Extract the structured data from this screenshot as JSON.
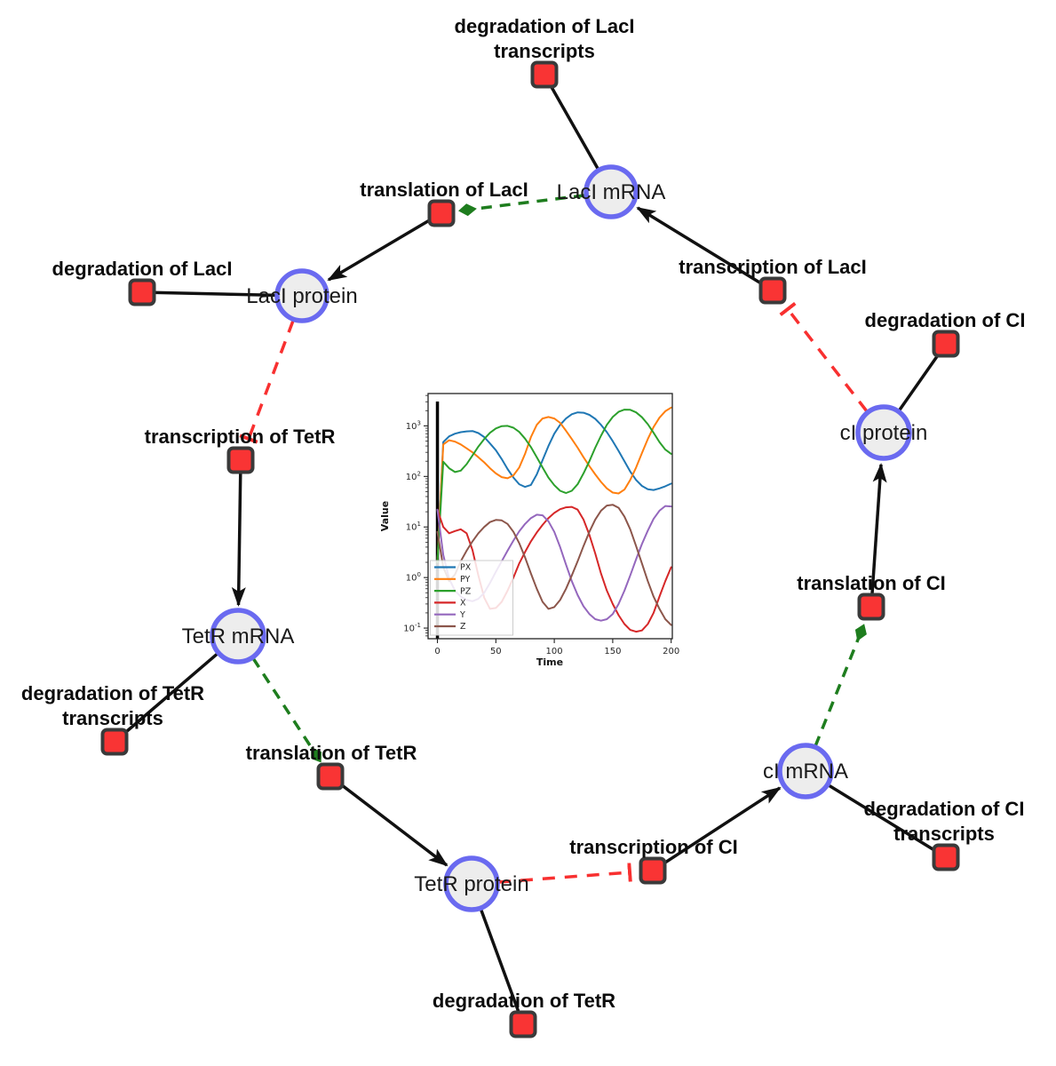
{
  "network": {
    "style": {
      "species_fill": "#ededed",
      "species_stroke": "#6a6af0",
      "reaction_fill": "#f93434",
      "reaction_stroke": "#3a3a3a",
      "edge_link_color": "#111111",
      "activation_color": "#1e7d1e",
      "inhibition_color": "#f83030"
    },
    "species": [
      {
        "id": "laci-mrna",
        "label": "LacI mRNA"
      },
      {
        "id": "laci-protein",
        "label": "LacI protein"
      },
      {
        "id": "ci-protein",
        "label": "cI protein"
      },
      {
        "id": "tetr-mrna",
        "label": "TetR mRNA"
      },
      {
        "id": "tetr-protein",
        "label": "TetR protein"
      },
      {
        "id": "ci-mrna",
        "label": "cI mRNA"
      }
    ],
    "reactions": [
      {
        "id": "deg-laci-transcripts",
        "lines": [
          "degradation of LacI",
          "transcripts"
        ]
      },
      {
        "id": "translation-laci",
        "lines": [
          "translation of LacI"
        ]
      },
      {
        "id": "deg-laci",
        "lines": [
          "degradation of LacI"
        ]
      },
      {
        "id": "transcription-laci",
        "lines": [
          "transcription of LacI"
        ]
      },
      {
        "id": "deg-ci",
        "lines": [
          "degradation of CI"
        ]
      },
      {
        "id": "transcription-tetr",
        "lines": [
          "transcription of TetR"
        ]
      },
      {
        "id": "translation-ci",
        "lines": [
          "translation of CI"
        ]
      },
      {
        "id": "deg-tetr-transcripts",
        "lines": [
          "degradation of TetR",
          "transcripts"
        ]
      },
      {
        "id": "translation-tetr",
        "lines": [
          "translation of TetR"
        ]
      },
      {
        "id": "transcription-ci",
        "lines": [
          "transcription of CI"
        ]
      },
      {
        "id": "deg-ci-transcripts",
        "lines": [
          "degradation of CI",
          "transcripts"
        ]
      },
      {
        "id": "deg-tetr",
        "lines": [
          "degradation of TetR"
        ]
      }
    ]
  },
  "chart_data": {
    "type": "line",
    "title": "",
    "xlabel": "Time",
    "ylabel": "Value",
    "y_scale": "log",
    "grid": false,
    "legend_position": "lower left",
    "x_ticks": [
      0,
      50,
      100,
      150,
      200
    ],
    "y_tick_exponents": [
      3,
      2,
      1,
      0,
      -1
    ],
    "x_range": [
      -8,
      201
    ],
    "y_log_range": [
      -1.21,
      3.64
    ],
    "vline_x": 0,
    "x": [
      0,
      5,
      10,
      15,
      20,
      25,
      30,
      35,
      40,
      45,
      50,
      55,
      60,
      65,
      70,
      75,
      80,
      85,
      90,
      95,
      100,
      105,
      110,
      115,
      120,
      125,
      130,
      135,
      140,
      145,
      150,
      155,
      160,
      165,
      170,
      175,
      180,
      185,
      190,
      195,
      200
    ],
    "series": [
      {
        "name": "PX",
        "color": "#1f77b4",
        "values": [
          2,
          480,
          620,
          700,
          750,
          780,
          790,
          720,
          600,
          450,
          330,
          220,
          140,
          95,
          70,
          62,
          68,
          110,
          210,
          400,
          700,
          1050,
          1400,
          1700,
          1850,
          1820,
          1650,
          1380,
          1050,
          750,
          500,
          320,
          200,
          125,
          85,
          65,
          56,
          54,
          58,
          64,
          72
        ]
      },
      {
        "name": "PY",
        "color": "#ff7f0e",
        "values": [
          2,
          430,
          520,
          490,
          430,
          360,
          300,
          240,
          190,
          145,
          115,
          97,
          92,
          105,
          150,
          280,
          600,
          1050,
          1400,
          1500,
          1400,
          1150,
          800,
          550,
          370,
          240,
          160,
          110,
          78,
          58,
          48,
          46,
          55,
          85,
          150,
          290,
          550,
          950,
          1450,
          1950,
          2300
        ]
      },
      {
        "name": "PZ",
        "color": "#2ca02c",
        "values": [
          2,
          195,
          145,
          122,
          130,
          175,
          260,
          390,
          550,
          730,
          890,
          990,
          1000,
          920,
          760,
          560,
          380,
          240,
          150,
          95,
          67,
          52,
          47,
          52,
          70,
          115,
          200,
          370,
          640,
          1050,
          1500,
          1900,
          2100,
          2080,
          1850,
          1480,
          1080,
          730,
          480,
          340,
          280
        ]
      },
      {
        "name": "X",
        "color": "#d62728",
        "values": [
          22,
          10,
          7.5,
          8.3,
          9,
          7.5,
          3.5,
          1.1,
          0.4,
          0.24,
          0.25,
          0.33,
          0.55,
          1.0,
          1.9,
          3.2,
          5.2,
          7.8,
          11,
          15,
          19,
          22.5,
          24.5,
          25,
          22,
          14,
          7,
          3,
          1.2,
          0.55,
          0.3,
          0.18,
          0.12,
          0.092,
          0.085,
          0.09,
          0.12,
          0.2,
          0.42,
          0.85,
          1.6
        ]
      },
      {
        "name": "Y",
        "color": "#9467bd",
        "values": [
          22,
          2.8,
          0.95,
          0.55,
          0.42,
          0.36,
          0.34,
          0.38,
          0.5,
          0.78,
          1.3,
          2.1,
          3.4,
          5.4,
          8.2,
          11.5,
          15,
          17.5,
          17,
          13,
          8,
          4,
          1.8,
          0.85,
          0.45,
          0.27,
          0.19,
          0.15,
          0.14,
          0.15,
          0.19,
          0.3,
          0.55,
          1.1,
          2.3,
          4.6,
          8.5,
          14.5,
          21,
          26,
          25.5
        ]
      },
      {
        "name": "Z",
        "color": "#8c564b",
        "values": [
          8,
          1.6,
          0.85,
          1.15,
          2.1,
          3.4,
          5.2,
          7.5,
          10,
          12.5,
          13.8,
          13.5,
          11.5,
          8,
          4.8,
          2.5,
          1.2,
          0.6,
          0.33,
          0.24,
          0.26,
          0.36,
          0.6,
          1.1,
          2.1,
          4.2,
          8,
          14,
          21,
          26.5,
          27.5,
          24,
          16,
          9,
          4.2,
          1.9,
          0.85,
          0.42,
          0.24,
          0.15,
          0.115
        ]
      }
    ]
  }
}
